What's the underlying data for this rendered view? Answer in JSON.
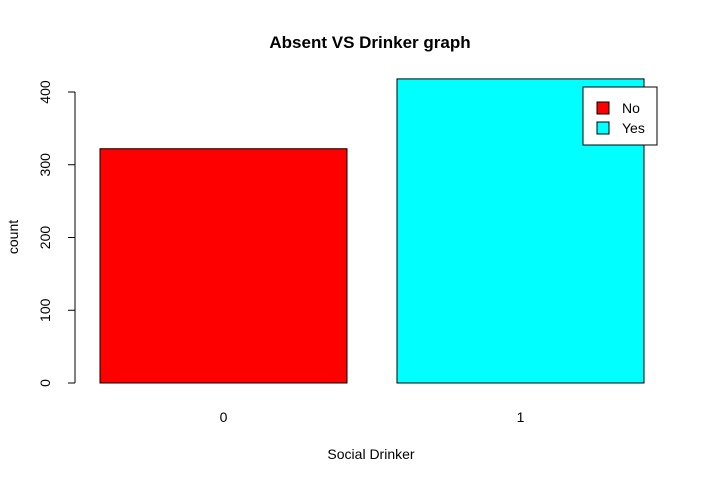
{
  "chart_data": {
    "type": "bar",
    "title": "Absent VS Drinker graph",
    "xlabel": "Social Drinker",
    "ylabel": "count",
    "categories": [
      "0",
      "1"
    ],
    "values": [
      322,
      418
    ],
    "colors": [
      "#ff0000",
      "#00ffff"
    ],
    "ylim": [
      0,
      420
    ],
    "yticks": [
      0,
      100,
      200,
      300,
      400
    ],
    "grid": false,
    "legend": {
      "position": "top-right",
      "entries": [
        {
          "label": "No",
          "color": "#ff0000"
        },
        {
          "label": "Yes",
          "color": "#00ffff"
        }
      ]
    }
  }
}
